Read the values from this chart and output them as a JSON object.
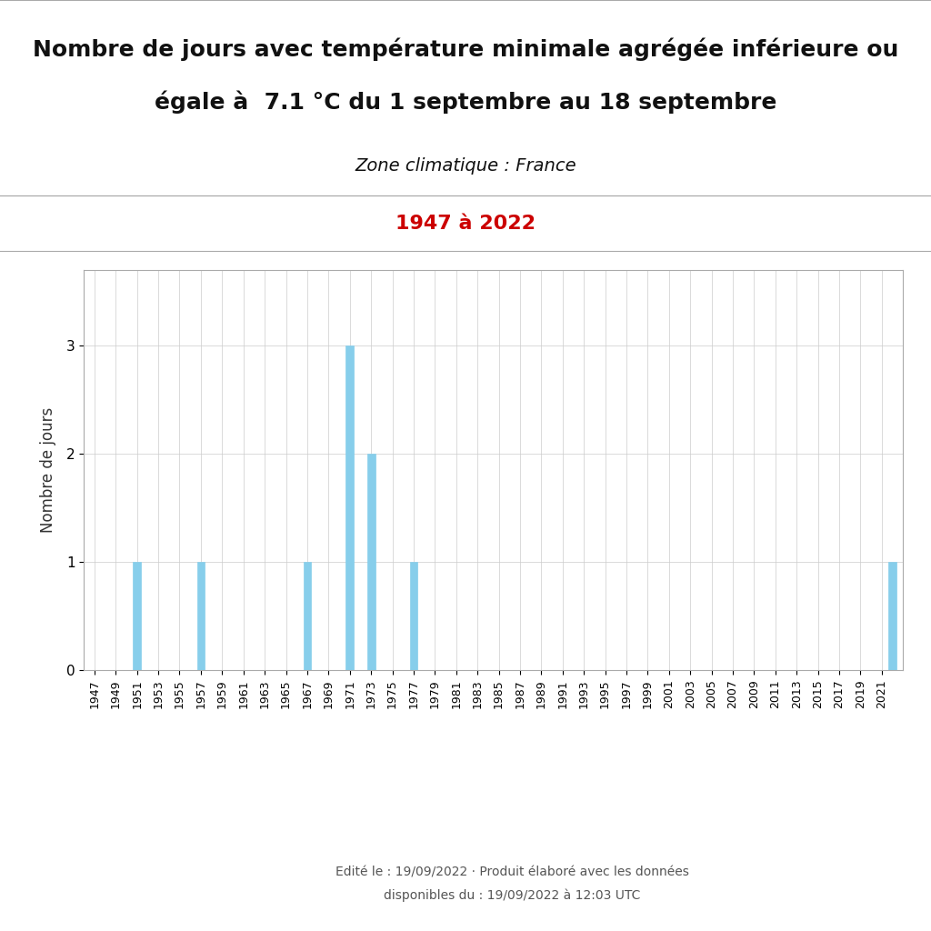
{
  "title_line1": "Nombre de jours avec température minimale agrégée inférieure ou",
  "title_line2": "égale à  7.1 °C du 1 septembre au 18 septembre",
  "subtitle": "Zone climatique : France",
  "period_label": "1947 à 2022",
  "period_color": "#cc0000",
  "ylabel": "Nombre de jours",
  "bar_color": "#87ceeb",
  "bar_edge_color": "#87ceeb",
  "background_color": "#ffffff",
  "header_bg_color": "#ebebeb",
  "years": [
    1947,
    1948,
    1949,
    1950,
    1951,
    1952,
    1953,
    1954,
    1955,
    1956,
    1957,
    1958,
    1959,
    1960,
    1961,
    1962,
    1963,
    1964,
    1965,
    1966,
    1967,
    1968,
    1969,
    1970,
    1971,
    1972,
    1973,
    1974,
    1975,
    1976,
    1977,
    1978,
    1979,
    1980,
    1981,
    1982,
    1983,
    1984,
    1985,
    1986,
    1987,
    1988,
    1989,
    1990,
    1991,
    1992,
    1993,
    1994,
    1995,
    1996,
    1997,
    1998,
    1999,
    2000,
    2001,
    2002,
    2003,
    2004,
    2005,
    2006,
    2007,
    2008,
    2009,
    2010,
    2011,
    2012,
    2013,
    2014,
    2015,
    2016,
    2017,
    2018,
    2019,
    2020,
    2021,
    2022
  ],
  "values": [
    0,
    0,
    0,
    0,
    1,
    0,
    0,
    0,
    0,
    0,
    1,
    0,
    0,
    0,
    0,
    0,
    0,
    0,
    0,
    0,
    1,
    0,
    0,
    0,
    3,
    0,
    2,
    0,
    0,
    0,
    1,
    0,
    0,
    0,
    0,
    0,
    0,
    0,
    0,
    0,
    0,
    0,
    0,
    0,
    0,
    0,
    0,
    0,
    0,
    0,
    0,
    0,
    0,
    0,
    0,
    0,
    0,
    0,
    0,
    0,
    0,
    0,
    0,
    0,
    0,
    0,
    0,
    0,
    0,
    0,
    0,
    0,
    0,
    0,
    0,
    1
  ],
  "yticks": [
    0,
    1,
    2,
    3
  ],
  "ylim": [
    0,
    3.7
  ],
  "xtick_step": 2,
  "footer_text_line1": "Edité le : 19/09/2022 · Produit élaboré avec les données",
  "footer_text_line2": "disponibles du : 19/09/2022 à 12:03 UTC",
  "footer_color": "#555555",
  "grid_color": "#cccccc",
  "spine_color": "#aaaaaa",
  "separator_color": "#aaaaaa"
}
